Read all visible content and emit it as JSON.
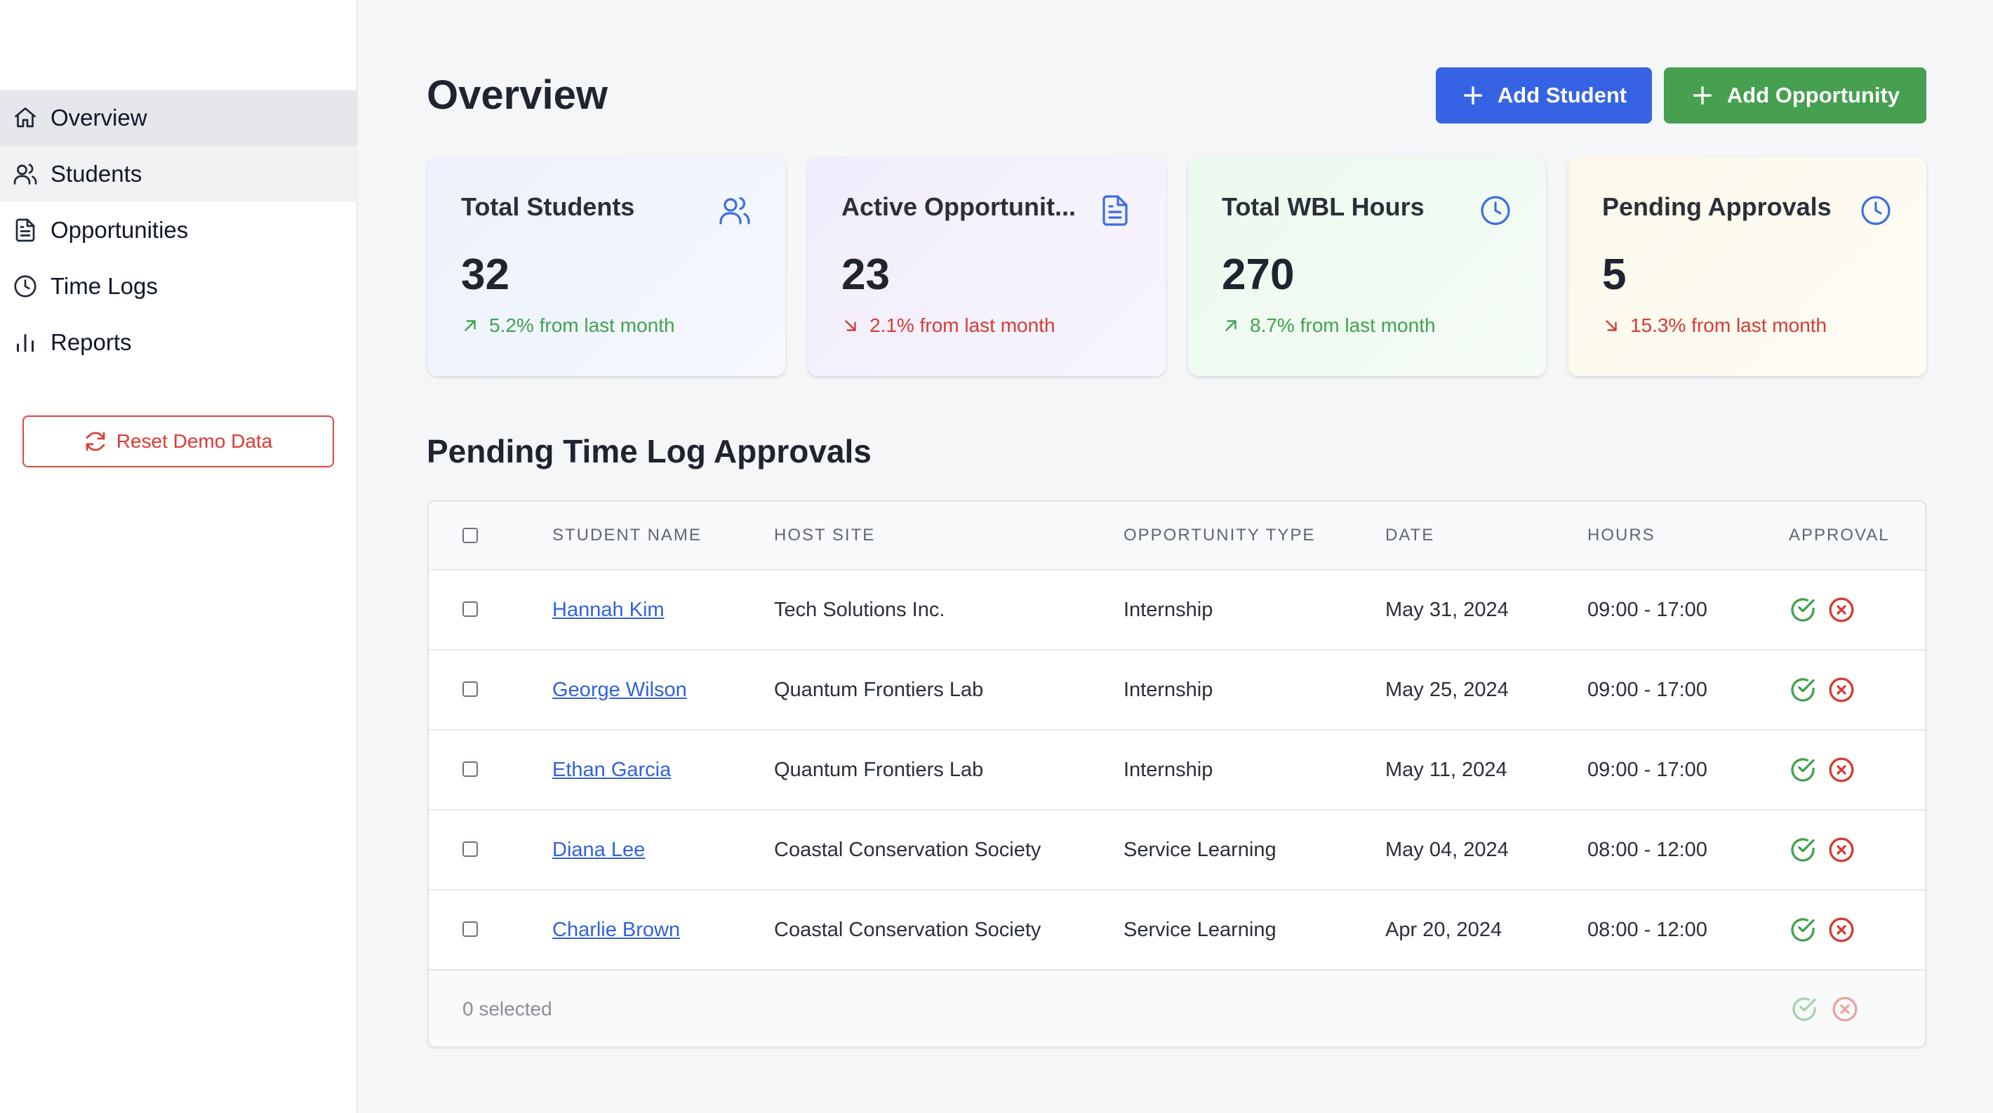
{
  "sidebar": {
    "items": [
      {
        "label": "Overview",
        "icon": "home-icon"
      },
      {
        "label": "Students",
        "icon": "users-icon"
      },
      {
        "label": "Opportunities",
        "icon": "document-icon"
      },
      {
        "label": "Time Logs",
        "icon": "clock-icon"
      },
      {
        "label": "Reports",
        "icon": "bar-chart-icon"
      }
    ],
    "active": "Overview",
    "reset_label": "Reset Demo Data"
  },
  "header": {
    "title": "Overview",
    "add_student_label": "Add Student",
    "add_opportunity_label": "Add Opportunity"
  },
  "stats": [
    {
      "title": "Total Students",
      "value": "32",
      "trend": "5.2% from last month",
      "direction": "up",
      "icon": "users-icon",
      "icon_color": "#3b6fe0",
      "bg": "#eef2fd"
    },
    {
      "title": "Active Opportunit...",
      "value": "23",
      "trend": "2.1% from last month",
      "direction": "down",
      "icon": "document-icon",
      "icon_color": "#3b6fe0",
      "bg": "#f3effc"
    },
    {
      "title": "Total WBL Hours",
      "value": "270",
      "trend": "8.7% from last month",
      "direction": "up",
      "icon": "clock-icon",
      "icon_color": "#3b6fe0",
      "bg": "#eefaf0"
    },
    {
      "title": "Pending Approvals",
      "value": "5",
      "trend": "15.3% from last month",
      "direction": "down",
      "icon": "clock-icon",
      "icon_color": "#3b6fe0",
      "bg": "#fdf9ec"
    }
  ],
  "approvals": {
    "title": "Pending Time Log Approvals",
    "columns": [
      "STUDENT NAME",
      "HOST SITE",
      "OPPORTUNITY TYPE",
      "DATE",
      "HOURS",
      "APPROVAL"
    ],
    "rows": [
      {
        "student": "Hannah Kim",
        "host": "Tech Solutions Inc.",
        "type": "Internship",
        "date": "May 31, 2024",
        "hours": "09:00 - 17:00"
      },
      {
        "student": "George Wilson",
        "host": "Quantum Frontiers Lab",
        "type": "Internship",
        "date": "May 25, 2024",
        "hours": "09:00 - 17:00"
      },
      {
        "student": "Ethan Garcia",
        "host": "Quantum Frontiers Lab",
        "type": "Internship",
        "date": "May 11, 2024",
        "hours": "09:00 - 17:00"
      },
      {
        "student": "Diana Lee",
        "host": "Coastal Conservation Society",
        "type": "Service Learning",
        "date": "May 04, 2024",
        "hours": "08:00 - 12:00"
      },
      {
        "student": "Charlie Brown",
        "host": "Coastal Conservation Society",
        "type": "Service Learning",
        "date": "Apr 20, 2024",
        "hours": "08:00 - 12:00"
      }
    ],
    "selected_text": "0 selected"
  },
  "colors": {
    "primary": "#3563e3",
    "success": "#46a04f",
    "danger": "#dc3b33",
    "link": "#3262d8"
  }
}
